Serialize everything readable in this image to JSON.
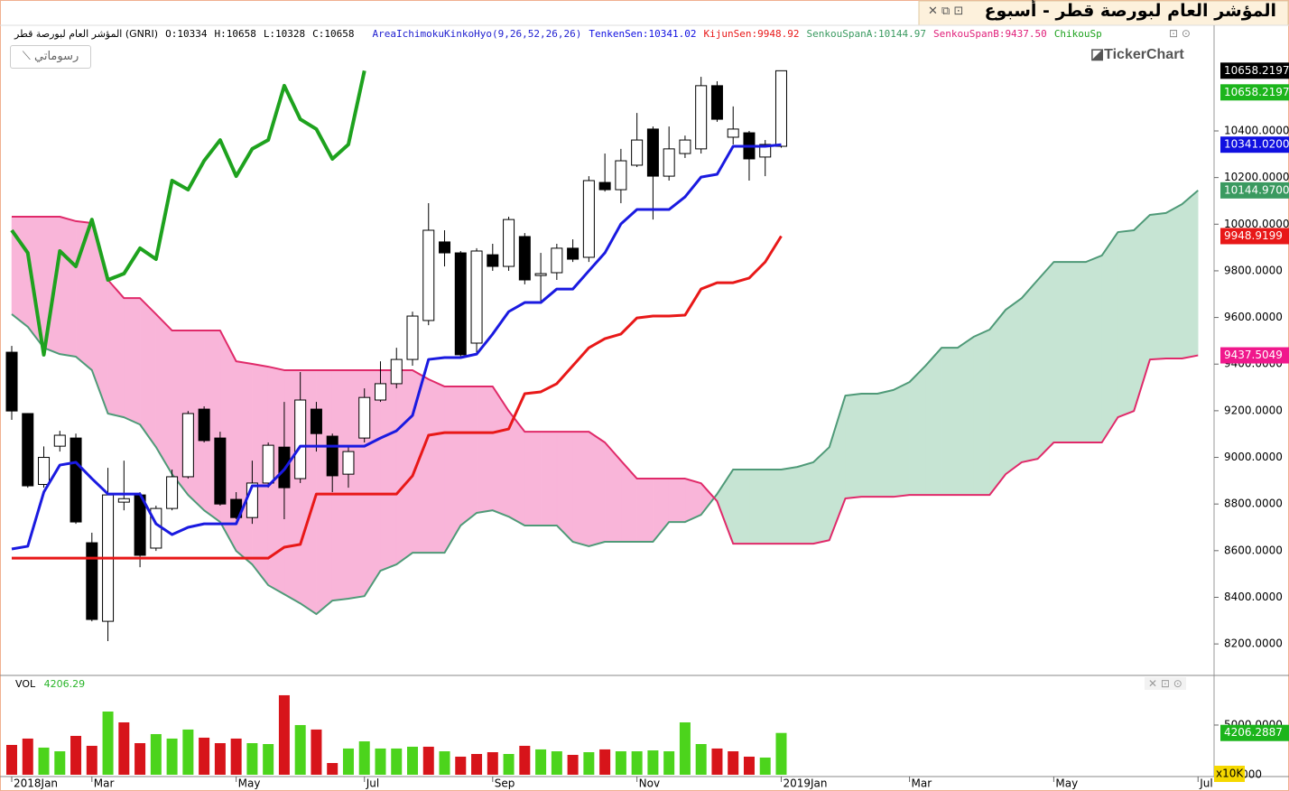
{
  "header": {
    "title": "المؤشر العام لبورصة قطر - أسبوع",
    "symbol": "المؤشر العام لبورصة قطر (GNRI)",
    "ohlc": [
      "O:10334",
      "H:10658",
      "L:10328",
      "C:10658"
    ],
    "indicator": "AreaIchimokuKinkoHyo(9,26,52,26,26)",
    "legend": [
      "TenkenSen:10341.02",
      "KijunSen:9948.92",
      "SenkouSpanA:10144.97",
      "SenkouSpanB:9437.50",
      "ChikouSp"
    ],
    "button": "رسوماتي",
    "logo": "TickerChart",
    "volume_label": "VOL",
    "volume_value": "4206.29"
  },
  "chart_data": [
    {
      "type": "candlestick",
      "xlim": [
        -0.5,
        75
      ],
      "ylim": [
        8065,
        10853
      ],
      "xticks": [
        {
          "value": 0,
          "label": "2018Jan"
        },
        {
          "value": 5,
          "label": "Mar"
        },
        {
          "value": 14,
          "label": "May"
        },
        {
          "value": 22,
          "label": "Jul"
        },
        {
          "value": 30,
          "label": "Sep"
        },
        {
          "value": 39,
          "label": "Nov"
        },
        {
          "value": 48,
          "label": "2019Jan"
        },
        {
          "value": 56,
          "label": "Mar"
        },
        {
          "value": 65,
          "label": "May"
        },
        {
          "value": 74,
          "label": "Jul"
        }
      ],
      "yticks": [
        {
          "value": 8200,
          "label": "8200.0000"
        },
        {
          "value": 8400,
          "label": "8400.0000"
        },
        {
          "value": 8600,
          "label": "8600.0000"
        },
        {
          "value": 8800,
          "label": "8800.0000"
        },
        {
          "value": 9000,
          "label": "9000.0000"
        },
        {
          "value": 9200,
          "label": "9200.0000"
        },
        {
          "value": 9400,
          "label": "9400.0000"
        },
        {
          "value": 9600,
          "label": "9600.0000"
        },
        {
          "value": 9800,
          "label": "9800.0000"
        },
        {
          "value": 10000,
          "label": "10000.0000"
        },
        {
          "value": 10200,
          "label": "10200.0000"
        },
        {
          "value": 10400,
          "label": "10400.0000"
        }
      ],
      "up_color": "#ffffff",
      "down_color": "#000000",
      "open": [
        9451,
        9188,
        8884,
        9048,
        9083,
        8634,
        8297,
        8808,
        8839,
        8611,
        8781,
        8917,
        9207,
        9083,
        8820,
        8742,
        8890,
        9044,
        8909,
        9207,
        9091,
        8928,
        9083,
        9246,
        9316,
        9420,
        9587,
        9924,
        9877,
        9490,
        9869,
        9819,
        9947,
        9780,
        9792,
        9897,
        9858,
        10179,
        10148,
        10253,
        10408,
        10206,
        10303,
        10323,
        10594,
        10373,
        10392,
        10288,
        10334
      ],
      "high": [
        9478,
        9190,
        9047,
        9114,
        9102,
        8677,
        8955,
        8986,
        8851,
        8793,
        8948,
        9199,
        9219,
        9110,
        8851,
        8986,
        9064,
        9238,
        9366,
        9238,
        9102,
        9044,
        9296,
        9412,
        9470,
        9625,
        10090,
        9974,
        9885,
        9897,
        9916,
        10032,
        9962,
        9877,
        9916,
        9935,
        10206,
        10303,
        10323,
        10477,
        10419,
        10419,
        10380,
        10632,
        10613,
        10505,
        10400,
        10361,
        10658
      ],
      "low": [
        9161,
        8870,
        8870,
        9025,
        8715,
        8297,
        8212,
        8773,
        8529,
        8599,
        8773,
        8909,
        9064,
        8793,
        8735,
        8715,
        8870,
        8735,
        8890,
        9025,
        8851,
        8870,
        9064,
        9238,
        9296,
        9393,
        9567,
        9819,
        9432,
        9451,
        9800,
        9800,
        9742,
        9664,
        9761,
        9838,
        9838,
        10140,
        10090,
        10245,
        10020,
        10187,
        10284,
        10303,
        10439,
        10342,
        10187,
        10206,
        10328
      ],
      "close": [
        9199,
        8878,
        9000,
        9095,
        8723,
        8305,
        8839,
        8823,
        8580,
        8781,
        8917,
        9188,
        9072,
        8800,
        8742,
        8890,
        9052,
        8870,
        9246,
        9102,
        8921,
        9025,
        9257,
        9316,
        9420,
        9606,
        9974,
        9877,
        9440,
        9885,
        9819,
        10020,
        9761,
        9788,
        9897,
        9850,
        10187,
        10148,
        10272,
        10361,
        10206,
        10323,
        10361,
        10594,
        10450,
        10408,
        10280,
        10342,
        10658
      ],
      "cloud_colors": [
        "#f9b5d9",
        "#c6e4d3"
      ],
      "series": [
        {
          "color": "#1a1ae0",
          "width": 3,
          "values": [
            8607,
            8619,
            8851,
            8967,
            8979,
            8909,
            8843,
            8843,
            8843,
            8715,
            8669,
            8700,
            8715,
            8715,
            8715,
            8878,
            8878,
            8948,
            9048,
            9048,
            9048,
            9048,
            9048,
            9083,
            9114,
            9180,
            9420,
            9428,
            9428,
            9443,
            9529,
            9625,
            9664,
            9664,
            9722,
            9722,
            9800,
            9877,
            10001,
            10063,
            10063,
            10063,
            10117,
            10202,
            10214,
            10334,
            10334,
            10334,
            10341.02
          ]
        },
        {
          "color": "#e81818",
          "width": 3,
          "values": [
            8568,
            8568,
            8568,
            8568,
            8568,
            8568,
            8568,
            8568,
            8568,
            8568,
            8568,
            8568,
            8568,
            8568,
            8568,
            8568,
            8568,
            8615,
            8627,
            8843,
            8843,
            8843,
            8843,
            8843,
            8843,
            8921,
            9095,
            9106,
            9106,
            9106,
            9106,
            9122,
            9273,
            9281,
            9316,
            9393,
            9470,
            9509,
            9529,
            9598,
            9606,
            9606,
            9610,
            9722,
            9749,
            9749,
            9769,
            9838,
            9948.92
          ]
        },
        {
          "color": "#4f9a78",
          "width": 2,
          "values": [
            9614,
            9560,
            9470,
            9443,
            9432,
            9374,
            9188,
            9172,
            9141,
            9044,
            8928,
            8839,
            8773,
            8723,
            8599,
            8541,
            8452,
            8413,
            8374,
            8328,
            8386,
            8394,
            8405,
            8514,
            8541,
            8591,
            8591,
            8591,
            8708,
            8762,
            8773,
            8746,
            8708,
            8708,
            8708,
            8638,
            8619,
            8638,
            8638,
            8638,
            8638,
            8723,
            8723,
            8754,
            8843,
            8948,
            8948,
            8948,
            8948,
            8959,
            8979,
            9044,
            9265,
            9273,
            9273,
            9289,
            9323,
            9393,
            9470,
            9470,
            9517,
            9548,
            9633,
            9683,
            9761,
            9838,
            9838,
            9838,
            9866,
            9966,
            9974,
            10040,
            10048,
            10086,
            10144.97
          ]
        },
        {
          "color": "#e02a6a",
          "width": 2,
          "values": [
            10032,
            10032,
            10032,
            10032,
            10013,
            10005,
            9761,
            9683,
            9683,
            9614,
            9544,
            9544,
            9544,
            9544,
            9412,
            9401,
            9389,
            9374,
            9374,
            9374,
            9374,
            9374,
            9374,
            9374,
            9374,
            9374,
            9335,
            9304,
            9304,
            9304,
            9304,
            9199,
            9110,
            9110,
            9110,
            9110,
            9110,
            9064,
            8986,
            8909,
            8909,
            8909,
            8909,
            8889,
            8812,
            8630,
            8630,
            8630,
            8630,
            8630,
            8630,
            8645,
            8824,
            8831,
            8831,
            8831,
            8839,
            8839,
            8839,
            8839,
            8839,
            8839,
            8928,
            8979,
            8994,
            9064,
            9064,
            9064,
            9064,
            9172,
            9199,
            9420,
            9424,
            9424,
            9437.5
          ]
        },
        {
          "color": "#1ea21e",
          "width": 4,
          "values": [
            9974,
            9877,
            9440,
            9885,
            9819,
            10020,
            9761,
            9788,
            9897,
            9850,
            10187,
            10148,
            10272,
            10361,
            10206,
            10323,
            10361,
            10594,
            10450,
            10408,
            10280,
            10342,
            10658
          ]
        }
      ],
      "last_labels": [
        {
          "value": 10658.2197,
          "label": "10658.2197",
          "color": "#000000"
        },
        {
          "value": 10658.2197,
          "label": "10658.2197",
          "color": "#1cb51c"
        },
        {
          "value": 10341.02,
          "label": "10341.0200",
          "color": "#1010e0"
        },
        {
          "value": 10144.97,
          "label": "10144.9700",
          "color": "#3a9a60"
        },
        {
          "value": 9948.9199,
          "label": "9948.9199",
          "color": "#e81818"
        },
        {
          "value": 9437.5049,
          "label": "9437.5049",
          "color": "#f0188c"
        }
      ]
    },
    {
      "type": "bar",
      "ylim": [
        0,
        8450
      ],
      "yticks": [
        {
          "value": 0,
          "label": "0.0000"
        },
        {
          "value": 5000,
          "label": "5000.0000"
        }
      ],
      "unit": "x10K",
      "values": [
        3000,
        3640,
        2730,
        2360,
        3910,
        2910,
        6360,
        5270,
        3180,
        4090,
        3640,
        4550,
        3730,
        3180,
        3640,
        3180,
        3090,
        8000,
        5000,
        4550,
        1180,
        2640,
        3360,
        2640,
        2640,
        2820,
        2820,
        2360,
        1820,
        2090,
        2270,
        2090,
        2910,
        2550,
        2360,
        2000,
        2270,
        2550,
        2360,
        2360,
        2450,
        2360,
        5270,
        3090,
        2640,
        2360,
        1820,
        1730,
        4206.29
      ],
      "colors": [
        "#d7141a",
        "#d7141a",
        "#4cd41c",
        "#4cd41c",
        "#d7141a",
        "#d7141a",
        "#4cd41c",
        "#d7141a",
        "#d7141a",
        "#4cd41c",
        "#4cd41c",
        "#4cd41c",
        "#d7141a",
        "#d7141a",
        "#d7141a",
        "#4cd41c",
        "#4cd41c",
        "#d7141a",
        "#4cd41c",
        "#d7141a",
        "#d7141a",
        "#4cd41c",
        "#4cd41c",
        "#4cd41c",
        "#4cd41c",
        "#4cd41c",
        "#d7141a",
        "#4cd41c",
        "#d7141a",
        "#d7141a",
        "#d7141a",
        "#4cd41c",
        "#d7141a",
        "#4cd41c",
        "#4cd41c",
        "#d7141a",
        "#4cd41c",
        "#d7141a",
        "#4cd41c",
        "#4cd41c",
        "#4cd41c",
        "#4cd41c",
        "#4cd41c",
        "#4cd41c",
        "#d7141a",
        "#d7141a",
        "#d7141a",
        "#4cd41c",
        "#4cd41c"
      ],
      "last_label": {
        "value": 4206.2887,
        "label": "4206.2887",
        "color": "#1cb51c"
      }
    }
  ]
}
